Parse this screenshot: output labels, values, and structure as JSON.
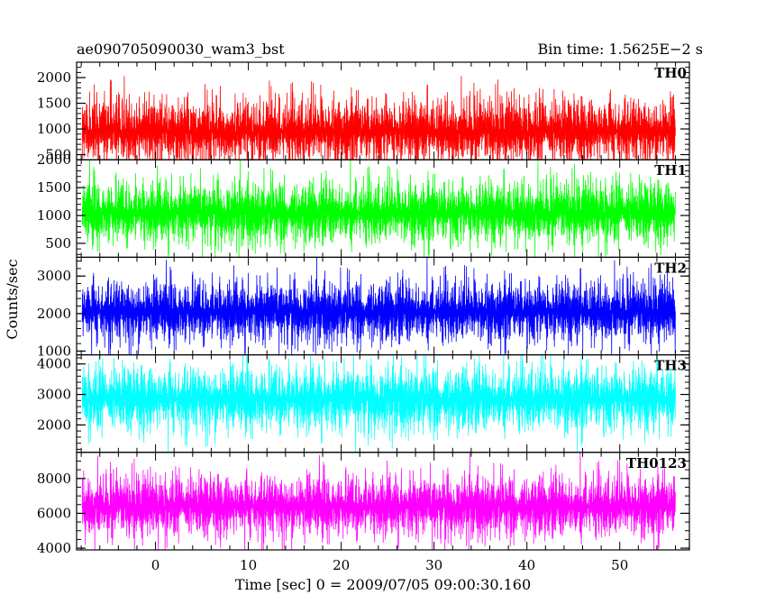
{
  "header": {
    "title": "ae090705090030_wam3_bst",
    "bin_time": "Bin time: 1.5625E−2 s"
  },
  "chart_data": {
    "type": "line",
    "title": "ae090705090030_wam3_bst",
    "subtitle": "Bin time: 1.5625E−2 s",
    "xlabel": "Time [sec] 0 = 2009/07/05 09:00:30.160",
    "ylabel": "Counts/sec",
    "xlim": [
      -8.5,
      57.5
    ],
    "data_x_range": [
      -7.9,
      56.0
    ],
    "x_ticks": [
      0,
      10,
      20,
      30,
      40,
      50
    ],
    "bin_time_s": 0.015625,
    "legend": "panel labels at top-right of each panel",
    "grid": false,
    "panels": [
      {
        "name": "TH0",
        "color": "#ff0000",
        "ylim": [
          400,
          2300
        ],
        "y_ticks": [
          500,
          1000,
          1500,
          2000
        ],
        "baseline": 950,
        "envelope_low": 250,
        "envelope_high": 2100,
        "peak": 2350
      },
      {
        "name": "TH1",
        "color": "#00ff00",
        "ylim": [
          250,
          2000
        ],
        "y_ticks": [
          500,
          1000,
          1500,
          2000
        ],
        "baseline": 1050,
        "envelope_low": 300,
        "envelope_high": 1900,
        "peak": 2000
      },
      {
        "name": "TH2",
        "color": "#0000ff",
        "ylim": [
          900,
          3500
        ],
        "y_ticks": [
          1000,
          2000,
          3000
        ],
        "baseline": 2050,
        "envelope_low": 950,
        "envelope_high": 3300,
        "peak": 3500
      },
      {
        "name": "TH3",
        "color": "#00ffff",
        "ylim": [
          1100,
          4300
        ],
        "y_ticks": [
          2000,
          3000,
          4000
        ],
        "baseline": 2850,
        "envelope_low": 1200,
        "envelope_high": 4200,
        "peak": 4300
      },
      {
        "name": "TH0123",
        "color": "#ff00ff",
        "ylim": [
          3900,
          9500
        ],
        "y_ticks": [
          4000,
          6000,
          8000
        ],
        "baseline": 6400,
        "envelope_low": 4000,
        "envelope_high": 9000,
        "peak": 9500
      }
    ]
  }
}
